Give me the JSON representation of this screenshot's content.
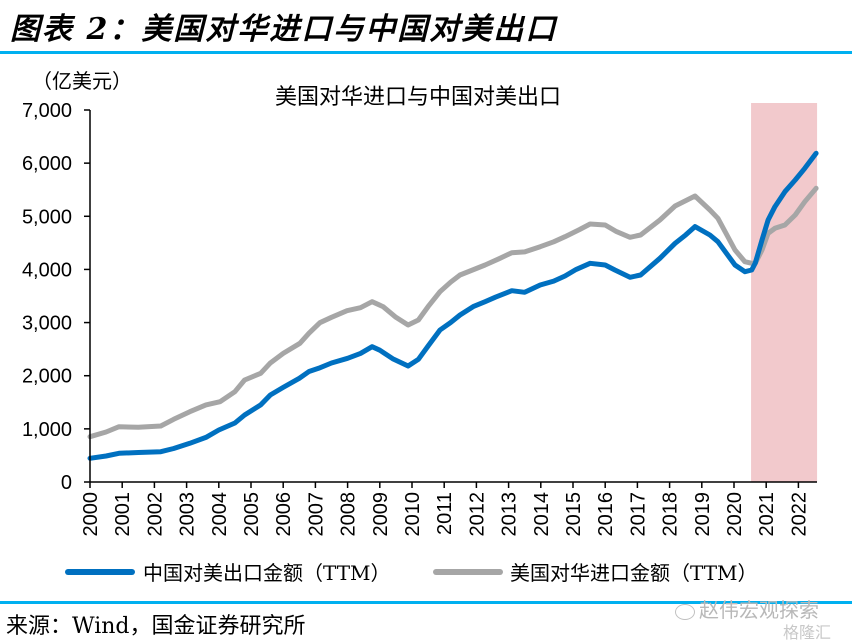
{
  "figure": {
    "title": "图表 2：美国对华进口与中国对美出口",
    "source": "来源：Wind，国金证券研究所",
    "watermark_text": "赵伟宏观探索",
    "watermark_logo": "格隆汇",
    "rule_color": "#00b0f0"
  },
  "chart_data": {
    "type": "line",
    "title": "美国对华进口与中国对美出口",
    "ylabel": "（亿美元）",
    "xlabel": "",
    "ylim": [
      0,
      7000
    ],
    "xlim": [
      2000,
      2022.58
    ],
    "yticks": [
      0,
      1000,
      2000,
      3000,
      4000,
      5000,
      6000,
      7000
    ],
    "ytick_labels": [
      "0",
      "1,000",
      "2,000",
      "3,000",
      "4,000",
      "5,000",
      "6,000",
      "7,000"
    ],
    "xticks": [
      2000,
      2001,
      2002,
      2003,
      2004,
      2005,
      2006,
      2007,
      2008,
      2009,
      2010,
      2011,
      2012,
      2013,
      2014,
      2015,
      2016,
      2017,
      2018,
      2019,
      2020,
      2021,
      2022
    ],
    "xtick_labels": [
      "2000",
      "2001",
      "2002",
      "2003",
      "2004",
      "2005",
      "2006",
      "2007",
      "2008",
      "2009",
      "2010",
      "2011",
      "2012",
      "2013",
      "2014",
      "2015",
      "2016",
      "2017",
      "2018",
      "2019",
      "2020",
      "2021",
      "2022"
    ],
    "grid": false,
    "legend_position": "bottom",
    "shaded_region": {
      "x_start": 2020.53,
      "x_end": 2022.58,
      "color": "#f2c9cc"
    },
    "series": [
      {
        "name": "中国对美出口金额（TTM）",
        "color": "#0070c0",
        "x": [
          2000.0,
          2000.5,
          2000.9,
          2001.5,
          2002.2,
          2002.6,
          2003.1,
          2003.6,
          2004.0,
          2004.5,
          2004.8,
          2005.3,
          2005.6,
          2006.0,
          2006.5,
          2006.8,
          2007.1,
          2007.5,
          2008.0,
          2008.4,
          2008.76,
          2009.0,
          2009.4,
          2009.88,
          2010.2,
          2010.5,
          2010.87,
          2011.2,
          2011.49,
          2011.9,
          2012.27,
          2012.6,
          2013.1,
          2013.5,
          2013.98,
          2014.4,
          2014.75,
          2015.1,
          2015.53,
          2016.0,
          2016.3,
          2016.77,
          2017.1,
          2017.7,
          2018.17,
          2018.5,
          2018.79,
          2019.25,
          2019.5,
          2020.03,
          2020.34,
          2020.55,
          2020.66,
          2020.87,
          2021.06,
          2021.27,
          2021.58,
          2021.9,
          2022.2,
          2022.55
        ],
        "values": [
          446,
          490,
          540,
          555,
          570,
          630,
          728,
          840,
          979,
          1110,
          1261,
          1450,
          1637,
          1780,
          1951,
          2080,
          2140,
          2240,
          2328,
          2420,
          2546,
          2480,
          2320,
          2183,
          2309,
          2560,
          2860,
          3000,
          3143,
          3300,
          3393,
          3480,
          3600,
          3570,
          3707,
          3780,
          3877,
          4000,
          4115,
          4083,
          3990,
          3852,
          3895,
          4209,
          4492,
          4650,
          4805,
          4648,
          4522,
          4083,
          3958,
          3990,
          4121,
          4554,
          4930,
          5180,
          5463,
          5683,
          5903,
          6185
        ]
      },
      {
        "name": "美国对华进口金额（TTM）",
        "color": "#a6a6a6",
        "x": [
          2000.0,
          2000.5,
          2000.9,
          2001.5,
          2002.2,
          2002.6,
          2003.1,
          2003.6,
          2004.04,
          2004.5,
          2004.8,
          2005.3,
          2005.59,
          2006.0,
          2006.52,
          2006.8,
          2007.14,
          2007.5,
          2007.98,
          2008.4,
          2008.76,
          2009.1,
          2009.5,
          2009.88,
          2010.2,
          2010.5,
          2010.87,
          2011.2,
          2011.49,
          2012.27,
          2012.7,
          2013.1,
          2013.5,
          2013.98,
          2014.4,
          2014.75,
          2015.2,
          2015.53,
          2016.0,
          2016.35,
          2016.77,
          2017.1,
          2017.7,
          2018.17,
          2018.79,
          2019.25,
          2019.5,
          2020.03,
          2020.34,
          2020.55,
          2020.66,
          2020.87,
          2021.06,
          2021.27,
          2021.58,
          2021.9,
          2022.2,
          2022.55
        ],
        "values": [
          852,
          940,
          1040,
          1030,
          1054,
          1180,
          1323,
          1450,
          1511,
          1700,
          1919,
          2045,
          2234,
          2420,
          2610,
          2800,
          2998,
          3100,
          3224,
          3280,
          3393,
          3300,
          3100,
          2954,
          3049,
          3300,
          3581,
          3760,
          3895,
          4083,
          4200,
          4315,
          4330,
          4428,
          4520,
          4616,
          4750,
          4855,
          4836,
          4711,
          4605,
          4648,
          4930,
          5194,
          5382,
          5118,
          4962,
          4366,
          4146,
          4115,
          4115,
          4366,
          4680,
          4774,
          4836,
          5024,
          5275,
          5527
        ]
      }
    ]
  }
}
